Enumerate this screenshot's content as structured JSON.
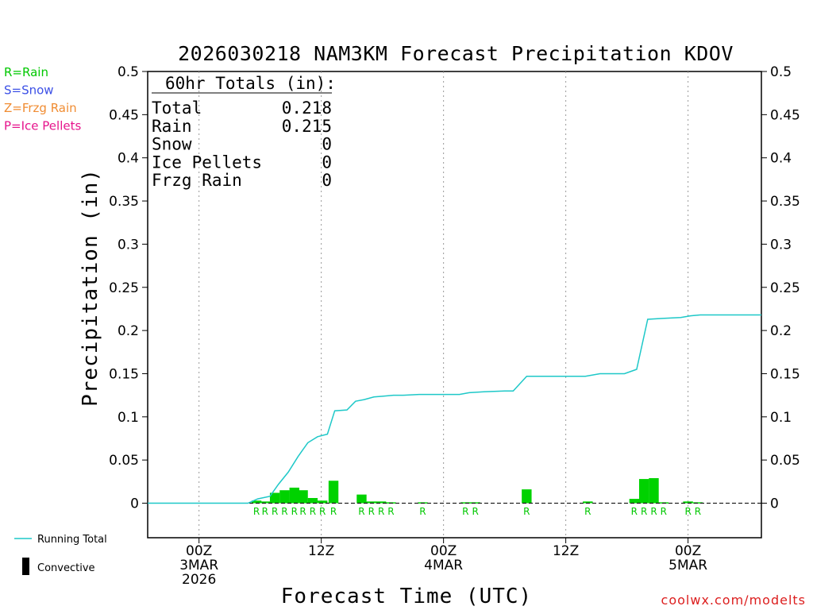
{
  "colors": {
    "rain": "#00c800",
    "snow": "#3c50e6",
    "frzg": "#f08c32",
    "ice": "#e6148c",
    "running": "#1ec8c8",
    "bar": "#00d200",
    "credit": "#dc1e1e"
  },
  "chart_data": {
    "type": "bar",
    "title": "2026030218 NAM3KM Forecast Precipitation KDOV",
    "xlabel": "Forecast Time (UTC)",
    "ylabel": "Precipitation (in)",
    "ylim": [
      -0.04,
      0.5
    ],
    "xlim": [
      -4.2,
      46
    ],
    "yticks": [
      0,
      0.05,
      0.1,
      0.15,
      0.2,
      0.25,
      0.3,
      0.35,
      0.4,
      0.45,
      0.5
    ],
    "ytick_labels": [
      "0",
      "0.05",
      "0.1",
      "0.15",
      "0.2",
      "0.25",
      "0.3",
      "0.35",
      "0.4",
      "0.45",
      "0.5"
    ],
    "ytick_labels_right": [
      "0",
      "0.05",
      "0.1",
      "0.15",
      "0.2",
      "0.25",
      "0.3",
      "0.35",
      "0.4",
      "0.45",
      "0.5"
    ],
    "xticks": [
      {
        "hour": 0,
        "lines": [
          "00Z",
          "3MAR",
          "2026"
        ]
      },
      {
        "hour": 10,
        "lines": [
          "12Z"
        ]
      },
      {
        "hour": 20,
        "lines": [
          "00Z",
          "4MAR"
        ]
      },
      {
        "hour": 30,
        "lines": [
          "12Z"
        ]
      },
      {
        "hour": 40,
        "lines": [
          "00Z",
          "5MAR"
        ]
      }
    ],
    "grid_hours": [
      0,
      10,
      20,
      30,
      40
    ],
    "bars_hourly": [
      {
        "hour": 4.7,
        "value": 0.003,
        "type": "R"
      },
      {
        "hour": 5.4,
        "value": 0.002,
        "type": "R"
      },
      {
        "hour": 6.2,
        "value": 0.012,
        "type": "R"
      },
      {
        "hour": 7.0,
        "value": 0.015,
        "type": "R"
      },
      {
        "hour": 7.8,
        "value": 0.018,
        "type": "R"
      },
      {
        "hour": 8.5,
        "value": 0.015,
        "type": "R"
      },
      {
        "hour": 9.3,
        "value": 0.006,
        "type": "R"
      },
      {
        "hour": 10.1,
        "value": 0.003,
        "type": "R"
      },
      {
        "hour": 11.0,
        "value": 0.026,
        "type": "R"
      },
      {
        "hour": 13.3,
        "value": 0.01,
        "type": "R"
      },
      {
        "hour": 14.1,
        "value": 0.002,
        "type": "R"
      },
      {
        "hour": 14.9,
        "value": 0.002,
        "type": "R"
      },
      {
        "hour": 15.7,
        "value": 0.001,
        "type": "R"
      },
      {
        "hour": 18.3,
        "value": 0.001,
        "type": "R"
      },
      {
        "hour": 21.8,
        "value": 0.001,
        "type": "R"
      },
      {
        "hour": 22.6,
        "value": 0.001,
        "type": "R"
      },
      {
        "hour": 26.8,
        "value": 0.016,
        "type": "R"
      },
      {
        "hour": 31.8,
        "value": 0.002,
        "type": "R"
      },
      {
        "hour": 35.6,
        "value": 0.005,
        "type": "R"
      },
      {
        "hour": 36.4,
        "value": 0.028,
        "type": "R"
      },
      {
        "hour": 37.2,
        "value": 0.029,
        "type": "R"
      },
      {
        "hour": 38.0,
        "value": 0.001,
        "type": "R"
      },
      {
        "hour": 40.0,
        "value": 0.002,
        "type": "R"
      },
      {
        "hour": 40.8,
        "value": 0.001,
        "type": "R"
      }
    ],
    "running_total": {
      "x": [
        -4.2,
        4.0,
        4.8,
        5.8,
        6.5,
        7.3,
        8.1,
        8.9,
        9.7,
        10.5,
        11.1,
        12.1,
        12.8,
        13.5,
        14.3,
        15.1,
        15.9,
        16.7,
        18.0,
        19.5,
        20.0,
        21.3,
        22.1,
        23.3,
        25.0,
        25.7,
        26.8,
        28.0,
        29.5,
        30.8,
        31.6,
        32.8,
        34.1,
        34.8,
        35.8,
        36.7,
        37.9,
        39.4,
        40.2,
        41.0,
        42.5,
        44.0,
        46.0
      ],
      "y": [
        0.0,
        0.0,
        0.005,
        0.008,
        0.022,
        0.036,
        0.054,
        0.07,
        0.077,
        0.08,
        0.107,
        0.108,
        0.118,
        0.12,
        0.123,
        0.124,
        0.125,
        0.125,
        0.126,
        0.126,
        0.126,
        0.126,
        0.128,
        0.129,
        0.13,
        0.13,
        0.147,
        0.147,
        0.147,
        0.147,
        0.147,
        0.15,
        0.15,
        0.15,
        0.155,
        0.213,
        0.214,
        0.215,
        0.217,
        0.218,
        0.218,
        0.218,
        0.218
      ]
    }
  },
  "legend_top": [
    {
      "text": "R=Rain",
      "color_key": "rain"
    },
    {
      "text": "S=Snow",
      "color_key": "snow"
    },
    {
      "text": "Z=Frzg Rain",
      "color_key": "frzg"
    },
    {
      "text": "P=Ice Pellets",
      "color_key": "ice"
    }
  ],
  "legend_bottom": {
    "running_total": "Running Total",
    "convective": "Convective"
  },
  "totals": {
    "header": "60hr Totals (in):",
    "rows": [
      {
        "label": "Total",
        "value": "0.218"
      },
      {
        "label": "Rain",
        "value": "0.215"
      },
      {
        "label": "Snow",
        "value": "0"
      },
      {
        "label": "Ice Pellets",
        "value": "0"
      },
      {
        "label": "Frzg Rain",
        "value": "0"
      }
    ]
  },
  "credit": "coolwx.com/modelts"
}
